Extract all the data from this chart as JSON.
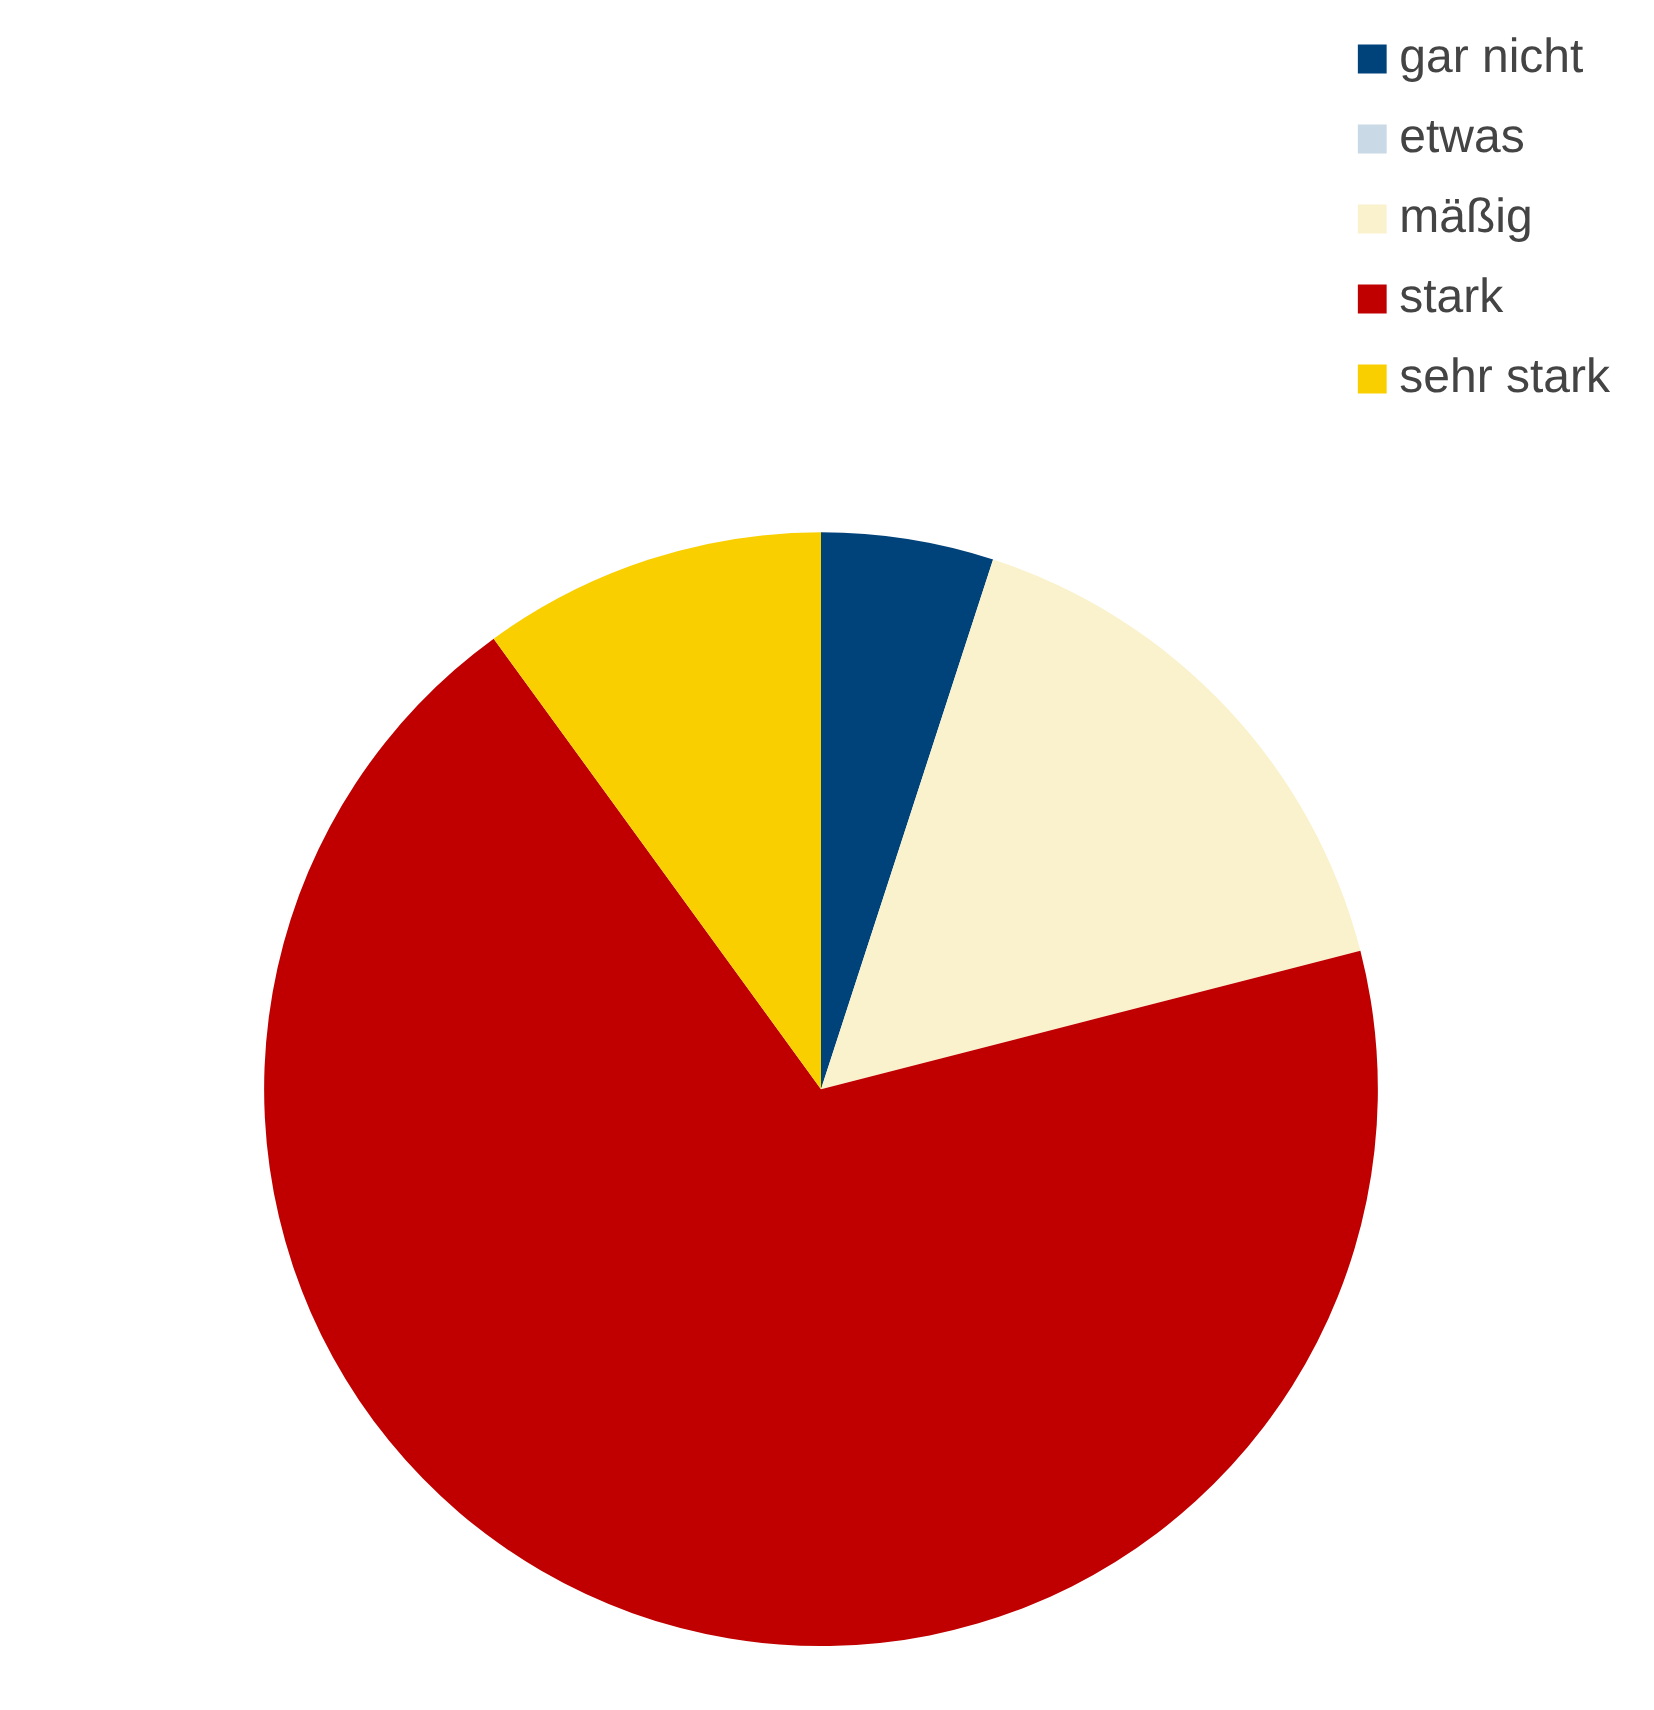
{
  "chart_data": {
    "type": "pie",
    "categories": [
      "gar nicht",
      "etwas",
      "mäßig",
      "stark",
      "sehr stark"
    ],
    "values": [
      5,
      0,
      16,
      69,
      10
    ],
    "colors": [
      "#00427a",
      "#c9d9e6",
      "#faf2cc",
      "#c00000",
      "#f9cf00"
    ],
    "legend": "top right"
  }
}
